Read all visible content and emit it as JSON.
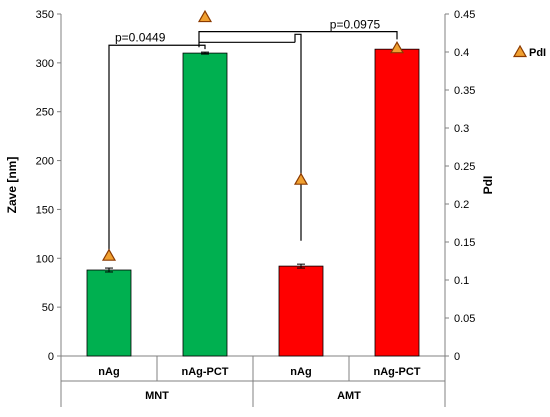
{
  "chart_data": {
    "type": "bar",
    "categories": [
      "nAg",
      "nAg-PCT",
      "nAg",
      "nAg-PCT"
    ],
    "groups": [
      "MNT",
      "AMT"
    ],
    "group_spans": [
      2,
      2
    ],
    "series": [
      {
        "axis": "left",
        "kind": "bar",
        "values": [
          88,
          310,
          92,
          314
        ],
        "errors": [
          2,
          1,
          2,
          1
        ],
        "colors": [
          "#00b050",
          "#00b050",
          "#ff0000",
          "#ff0000"
        ]
      },
      {
        "name": "PdI",
        "axis": "right",
        "kind": "marker",
        "values": [
          0.132,
          0.446,
          0.232,
          0.405
        ],
        "marker_color": "#f0a030"
      }
    ],
    "ylabel": "Zave [nm]",
    "y2label": "PdI",
    "ylim": [
      0,
      350
    ],
    "y2lim": [
      0,
      0.45
    ],
    "yticks": [
      "0",
      "50",
      "100",
      "150",
      "200",
      "250",
      "300",
      "350"
    ],
    "y2ticks": [
      "0",
      "0.05",
      "0.1",
      "0.15",
      "0.2",
      "0.25",
      "0.3",
      "0.35",
      "0.4",
      "0.45"
    ],
    "annotations": [
      "p=0.0449",
      "p=0.0975"
    ],
    "legend_position": "right",
    "grid": false
  }
}
